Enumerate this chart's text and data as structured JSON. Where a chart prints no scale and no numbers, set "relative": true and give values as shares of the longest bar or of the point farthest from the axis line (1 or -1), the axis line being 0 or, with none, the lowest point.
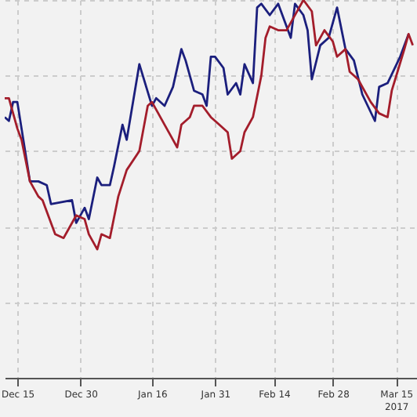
{
  "chart_data": {
    "type": "line",
    "relative": true,
    "grid": true,
    "legend": false,
    "marker": "none",
    "line_style": "solid",
    "xlim": [
      "2016-12-12",
      "2017-03-20"
    ],
    "xticks": [
      {
        "value": "2016-12-15",
        "label": "Dec 15"
      },
      {
        "value": "2016-12-30",
        "label": "Dec 30"
      },
      {
        "value": "2017-01-16",
        "label": "Jan 16"
      },
      {
        "value": "2017-01-31",
        "label": "Jan 31"
      },
      {
        "value": "2017-02-14",
        "label": "Feb 14"
      },
      {
        "value": "2017-02-28",
        "label": "Feb 28"
      },
      {
        "value": "2017-03-15",
        "label": "Mar 15\n2017"
      }
    ],
    "series": [
      {
        "color": "#1b1f7d",
        "x": [
          "2016-12-12",
          "2016-12-13",
          "2016-12-14",
          "2016-12-15",
          "2016-12-18",
          "2016-12-20",
          "2016-12-22",
          "2016-12-23",
          "2016-12-28",
          "2016-12-29",
          "2016-12-31",
          "2017-01-01",
          "2017-01-03",
          "2017-01-04",
          "2017-01-06",
          "2017-01-07",
          "2017-01-09",
          "2017-01-10",
          "2017-01-13",
          "2017-01-16",
          "2017-01-17",
          "2017-01-19",
          "2017-01-21",
          "2017-01-23",
          "2017-01-24",
          "2017-01-26",
          "2017-01-28",
          "2017-01-29",
          "2017-01-30",
          "2017-01-31",
          "2017-02-02",
          "2017-02-03",
          "2017-02-05",
          "2017-02-06",
          "2017-02-07",
          "2017-02-09",
          "2017-02-10",
          "2017-02-11",
          "2017-02-13",
          "2017-02-15",
          "2017-02-18",
          "2017-02-19",
          "2017-02-21",
          "2017-02-22",
          "2017-02-23",
          "2017-02-25",
          "2017-02-27",
          "2017-03-01",
          "2017-03-03",
          "2017-03-05",
          "2017-03-07",
          "2017-03-10",
          "2017-03-11",
          "2017-03-13",
          "2017-03-16",
          "2017-03-18"
        ],
        "values": [
          0.69,
          0.68,
          0.73,
          0.73,
          0.52,
          0.52,
          0.51,
          0.46,
          0.47,
          0.41,
          0.45,
          0.42,
          0.53,
          0.51,
          0.51,
          0.56,
          0.67,
          0.63,
          0.83,
          0.72,
          0.74,
          0.72,
          0.77,
          0.87,
          0.84,
          0.76,
          0.75,
          0.72,
          0.85,
          0.85,
          0.82,
          0.75,
          0.78,
          0.75,
          0.83,
          0.78,
          0.98,
          0.99,
          0.96,
          0.99,
          0.9,
          0.99,
          0.96,
          0.92,
          0.79,
          0.88,
          0.9,
          0.98,
          0.87,
          0.84,
          0.75,
          0.68,
          0.77,
          0.78,
          0.85,
          0.91
        ]
      },
      {
        "color": "#a31d2b",
        "x": [
          "2016-12-12",
          "2016-12-13",
          "2016-12-15",
          "2016-12-16",
          "2016-12-18",
          "2016-12-20",
          "2016-12-21",
          "2016-12-24",
          "2016-12-26",
          "2016-12-27",
          "2016-12-29",
          "2016-12-31",
          "2017-01-01",
          "2017-01-03",
          "2017-01-04",
          "2017-01-06",
          "2017-01-08",
          "2017-01-10",
          "2017-01-13",
          "2017-01-15",
          "2017-01-16",
          "2017-01-19",
          "2017-01-21",
          "2017-01-22",
          "2017-01-23",
          "2017-01-25",
          "2017-01-26",
          "2017-01-28",
          "2017-01-30",
          "2017-02-01",
          "2017-02-03",
          "2017-02-04",
          "2017-02-06",
          "2017-02-07",
          "2017-02-09",
          "2017-02-11",
          "2017-02-12",
          "2017-02-13",
          "2017-02-15",
          "2017-02-17",
          "2017-02-18",
          "2017-02-20",
          "2017-02-21",
          "2017-02-23",
          "2017-02-24",
          "2017-02-26",
          "2017-02-28",
          "2017-03-01",
          "2017-03-03",
          "2017-03-04",
          "2017-03-06",
          "2017-03-09",
          "2017-03-11",
          "2017-03-13",
          "2017-03-14",
          "2017-03-17",
          "2017-03-18",
          "2017-03-19"
        ],
        "values": [
          0.74,
          0.74,
          0.66,
          0.63,
          0.52,
          0.48,
          0.47,
          0.38,
          0.37,
          0.39,
          0.43,
          0.42,
          0.38,
          0.34,
          0.38,
          0.37,
          0.48,
          0.55,
          0.6,
          0.72,
          0.73,
          0.67,
          0.63,
          0.61,
          0.67,
          0.69,
          0.72,
          0.72,
          0.69,
          0.67,
          0.65,
          0.58,
          0.6,
          0.65,
          0.69,
          0.8,
          0.9,
          0.93,
          0.92,
          0.92,
          0.94,
          0.98,
          1,
          0.97,
          0.88,
          0.92,
          0.89,
          0.85,
          0.87,
          0.81,
          0.79,
          0.73,
          0.7,
          0.69,
          0.76,
          0.87,
          0.91,
          0.88
        ]
      }
    ]
  }
}
